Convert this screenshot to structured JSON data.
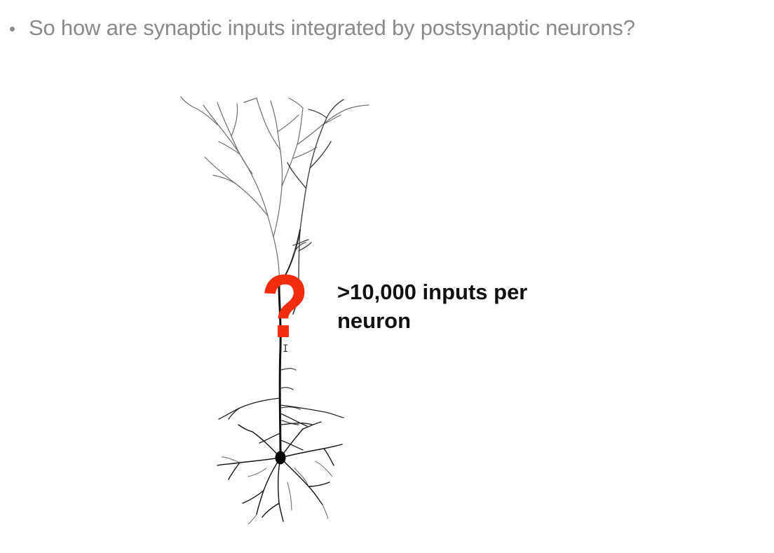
{
  "slide": {
    "bullet_text": "So how are synaptic inputs integrated by postsynaptic neurons?",
    "callout_text": ">10,000 inputs per neuron",
    "question_symbol": "?",
    "accent_color": "#f22c0f",
    "bullet_color": "#8a8a8a"
  },
  "figure": {
    "icon": "pyramidal-neuron-icon"
  }
}
